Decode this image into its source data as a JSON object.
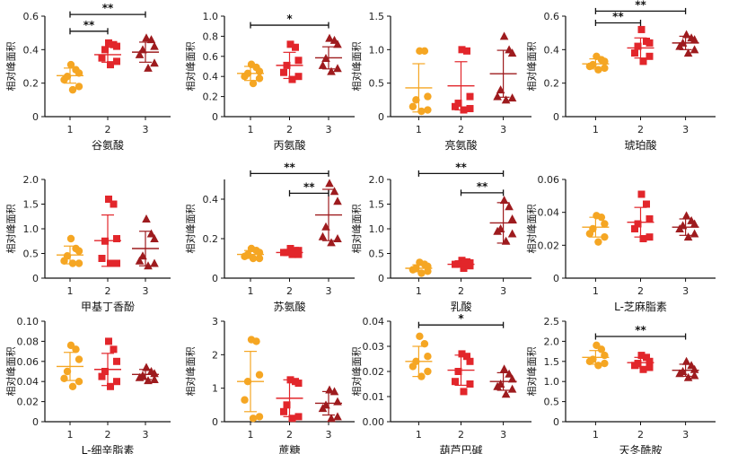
{
  "colors": {
    "group1": "#F5A623",
    "group2": "#E2262B",
    "group3": "#9E1B1E"
  },
  "markers": [
    "circle",
    "square",
    "triangle"
  ],
  "chart_data": [
    {
      "type": "scatter",
      "xlabel": "谷氨酸",
      "ylabel": "相对峰面积",
      "categories": [
        "1",
        "2",
        "3"
      ],
      "ylim": [
        0,
        0.6
      ],
      "yticks": [
        0,
        0.2,
        0.4,
        0.6
      ],
      "yticklabels": [
        "0",
        "0.2",
        "0.4",
        "0.6"
      ],
      "series": [
        {
          "values": [
            0.31,
            0.28,
            0.26,
            0.24,
            0.22,
            0.18,
            0.16
          ]
        },
        {
          "values": [
            0.44,
            0.43,
            0.42,
            0.4,
            0.35,
            0.33,
            0.31
          ]
        },
        {
          "values": [
            0.47,
            0.46,
            0.42,
            0.4,
            0.37,
            0.32,
            0.29
          ]
        }
      ],
      "mean": [
        0.245,
        0.37,
        0.385
      ],
      "sd": [
        0.045,
        0.045,
        0.06
      ],
      "significance": [
        {
          "from": "1",
          "to": "2",
          "label": "**",
          "y": 0.51
        },
        {
          "from": "1",
          "to": "3",
          "label": "**",
          "y": 0.61
        }
      ]
    },
    {
      "type": "scatter",
      "xlabel": "丙氨酸",
      "ylabel": "相对峰面积",
      "categories": [
        "1",
        "2",
        "3"
      ],
      "ylim": [
        0,
        1.0
      ],
      "yticks": [
        0,
        0.2,
        0.4,
        0.6,
        0.8,
        1.0
      ],
      "yticklabels": [
        "0",
        "0.2",
        "0.4",
        "0.6",
        "0.8",
        "1.0"
      ],
      "series": [
        {
          "values": [
            0.52,
            0.49,
            0.45,
            0.43,
            0.4,
            0.38,
            0.33
          ]
        },
        {
          "values": [
            0.72,
            0.69,
            0.56,
            0.51,
            0.44,
            0.4,
            0.37
          ]
        },
        {
          "values": [
            0.78,
            0.76,
            0.72,
            0.58,
            0.51,
            0.48,
            0.45
          ]
        }
      ],
      "mean": [
        0.43,
        0.51,
        0.585
      ],
      "sd": [
        0.07,
        0.13,
        0.11
      ],
      "significance": [
        {
          "from": "1",
          "to": "3",
          "label": "*",
          "y": 0.91
        }
      ]
    },
    {
      "type": "scatter",
      "xlabel": "亮氨酸",
      "ylabel": "相对峰面积",
      "categories": [
        "1",
        "2",
        "3"
      ],
      "ylim": [
        0,
        1.5
      ],
      "yticks": [
        0,
        0.5,
        1.0,
        1.5
      ],
      "yticklabels": [
        "0",
        "0.5",
        "1.0",
        "1.5"
      ],
      "series": [
        {
          "values": [
            0.98,
            0.98,
            0.3,
            0.25,
            0.15,
            0.1,
            0.08
          ]
        },
        {
          "values": [
            1.0,
            0.98,
            0.3,
            0.2,
            0.15,
            0.12,
            0.1
          ]
        },
        {
          "values": [
            1.2,
            1.0,
            0.95,
            0.4,
            0.3,
            0.28,
            0.25
          ]
        }
      ],
      "mean": [
        0.43,
        0.46,
        0.64
      ],
      "sd": [
        0.36,
        0.36,
        0.35
      ],
      "significance": []
    },
    {
      "type": "scatter",
      "xlabel": "琥珀酸",
      "ylabel": "相对峰面积",
      "categories": [
        "1",
        "2",
        "3"
      ],
      "ylim": [
        0,
        0.6
      ],
      "yticks": [
        0,
        0.2,
        0.4,
        0.6
      ],
      "yticklabels": [
        "0",
        "0.2",
        "0.4",
        "0.6"
      ],
      "series": [
        {
          "values": [
            0.36,
            0.34,
            0.33,
            0.31,
            0.3,
            0.29,
            0.28
          ]
        },
        {
          "values": [
            0.52,
            0.45,
            0.44,
            0.42,
            0.38,
            0.36,
            0.33
          ]
        },
        {
          "values": [
            0.49,
            0.47,
            0.46,
            0.44,
            0.42,
            0.4,
            0.38
          ]
        }
      ],
      "mean": [
        0.315,
        0.41,
        0.44
      ],
      "sd": [
        0.03,
        0.06,
        0.04
      ],
      "significance": [
        {
          "from": "1",
          "to": "2",
          "label": "**",
          "y": 0.56
        },
        {
          "from": "1",
          "to": "3",
          "label": "**",
          "y": 0.63
        }
      ]
    },
    {
      "type": "scatter",
      "xlabel": "甲基丁香酚",
      "ylabel": "相对峰面积",
      "categories": [
        "1",
        "2",
        "3"
      ],
      "ylim": [
        0,
        2.0
      ],
      "yticks": [
        0,
        0.5,
        1.0,
        1.5,
        2.0
      ],
      "yticklabels": [
        "0",
        "0.5",
        "1.0",
        "1.5",
        "2.0"
      ],
      "series": [
        {
          "values": [
            0.8,
            0.6,
            0.55,
            0.45,
            0.35,
            0.3,
            0.3
          ]
        },
        {
          "values": [
            1.6,
            1.5,
            0.8,
            0.75,
            0.4,
            0.3,
            0.3
          ]
        },
        {
          "values": [
            1.2,
            0.9,
            0.8,
            0.45,
            0.35,
            0.3,
            0.25
          ]
        }
      ],
      "mean": [
        0.47,
        0.76,
        0.6
      ],
      "sd": [
        0.18,
        0.52,
        0.35
      ],
      "significance": []
    },
    {
      "type": "scatter",
      "xlabel": "苏氨酸",
      "ylabel": "相对峰面积",
      "categories": [
        "1",
        "2",
        "3"
      ],
      "ylim": [
        0,
        0.5
      ],
      "yticks": [
        0,
        0.2,
        0.4
      ],
      "yticklabels": [
        "0",
        "0.2",
        "0.4"
      ],
      "series": [
        {
          "values": [
            0.15,
            0.14,
            0.13,
            0.12,
            0.11,
            0.1,
            0.1
          ]
        },
        {
          "values": [
            0.15,
            0.14,
            0.14,
            0.13,
            0.13,
            0.12,
            0.12
          ]
        },
        {
          "values": [
            0.48,
            0.44,
            0.39,
            0.26,
            0.21,
            0.2,
            0.18
          ]
        }
      ],
      "mean": [
        0.12,
        0.13,
        0.32
      ],
      "sd": [
        0.02,
        0.01,
        0.13
      ],
      "significance": [
        {
          "from": "2",
          "to": "3",
          "label": "**",
          "y": 0.43
        },
        {
          "from": "1",
          "to": "3",
          "label": "**",
          "y": 0.53
        }
      ]
    },
    {
      "type": "scatter",
      "xlabel": "乳酸",
      "ylabel": "相对峰面积",
      "categories": [
        "1",
        "2",
        "3"
      ],
      "ylim": [
        0,
        2.0
      ],
      "yticks": [
        0,
        0.5,
        1.0,
        1.5,
        2.0
      ],
      "yticklabels": [
        "0",
        "0.5",
        "1.0",
        "1.5",
        "2.0"
      ],
      "series": [
        {
          "values": [
            0.32,
            0.28,
            0.24,
            0.2,
            0.17,
            0.14,
            0.1
          ]
        },
        {
          "values": [
            0.36,
            0.33,
            0.31,
            0.29,
            0.28,
            0.25,
            0.2
          ]
        },
        {
          "values": [
            1.58,
            1.45,
            1.2,
            1.0,
            0.95,
            0.9,
            0.75
          ]
        }
      ],
      "mean": [
        0.2,
        0.28,
        1.12
      ],
      "sd": [
        0.07,
        0.06,
        0.41
      ],
      "significance": [
        {
          "from": "2",
          "to": "3",
          "label": "**",
          "y": 1.73
        },
        {
          "from": "1",
          "to": "3",
          "label": "**",
          "y": 2.12
        }
      ]
    },
    {
      "type": "scatter",
      "xlabel": "L-芝麻脂素",
      "ylabel": "相对峰面积",
      "categories": [
        "1",
        "2",
        "3"
      ],
      "ylim": [
        0,
        0.06
      ],
      "yticks": [
        0,
        0.02,
        0.04,
        0.06
      ],
      "yticklabels": [
        "0",
        "0.02",
        "0.04",
        "0.06"
      ],
      "series": [
        {
          "values": [
            0.038,
            0.037,
            0.033,
            0.03,
            0.027,
            0.025,
            0.022
          ]
        },
        {
          "values": [
            0.051,
            0.045,
            0.036,
            0.033,
            0.03,
            0.025,
            0.024
          ]
        },
        {
          "values": [
            0.038,
            0.035,
            0.033,
            0.032,
            0.03,
            0.027,
            0.025
          ]
        }
      ],
      "mean": [
        0.031,
        0.034,
        0.031
      ],
      "sd": [
        0.006,
        0.009,
        0.005
      ],
      "significance": []
    },
    {
      "type": "scatter",
      "xlabel": "L-细辛脂素",
      "ylabel": "相对峰面积",
      "categories": [
        "1",
        "2",
        "3"
      ],
      "ylim": [
        0,
        0.1
      ],
      "yticks": [
        0,
        0.02,
        0.04,
        0.06,
        0.08,
        0.1
      ],
      "yticklabels": [
        "0",
        "0.02",
        "0.04",
        "0.06",
        "0.08",
        "0.10"
      ],
      "series": [
        {
          "values": [
            0.076,
            0.072,
            0.062,
            0.05,
            0.043,
            0.04,
            0.035
          ]
        },
        {
          "values": [
            0.08,
            0.072,
            0.06,
            0.05,
            0.045,
            0.04,
            0.035
          ]
        },
        {
          "values": [
            0.054,
            0.05,
            0.048,
            0.046,
            0.044,
            0.042,
            0.041
          ]
        }
      ],
      "mean": [
        0.055,
        0.052,
        0.047
      ],
      "sd": [
        0.014,
        0.016,
        0.005
      ],
      "significance": []
    },
    {
      "type": "scatter",
      "xlabel": "蔗糖",
      "ylabel": "相对峰面积",
      "categories": [
        "1",
        "2",
        "3"
      ],
      "ylim": [
        0,
        3
      ],
      "yticks": [
        0,
        1,
        2,
        3
      ],
      "yticklabels": [
        "0",
        "1",
        "2",
        "3"
      ],
      "series": [
        {
          "values": [
            2.45,
            2.4,
            1.4,
            1.2,
            0.65,
            0.15,
            0.1
          ]
        },
        {
          "values": [
            1.25,
            1.2,
            1.15,
            0.5,
            0.3,
            0.15,
            0.1
          ]
        },
        {
          "values": [
            0.95,
            0.9,
            0.6,
            0.5,
            0.4,
            0.15,
            0.1
          ]
        }
      ],
      "mean": [
        1.2,
        0.7,
        0.55
      ],
      "sd": [
        0.9,
        0.55,
        0.35
      ],
      "significance": []
    },
    {
      "type": "scatter",
      "xlabel": "葫芦巴碱",
      "ylabel": "相对峰面积",
      "categories": [
        "1",
        "2",
        "3"
      ],
      "ylim": [
        0,
        0.04
      ],
      "yticks": [
        0,
        0.01,
        0.02,
        0.03,
        0.04
      ],
      "yticklabels": [
        "0.00",
        "0.01",
        "0.02",
        "0.03",
        "0.04"
      ],
      "series": [
        {
          "values": [
            0.034,
            0.031,
            0.026,
            0.024,
            0.022,
            0.02,
            0.018
          ]
        },
        {
          "values": [
            0.027,
            0.026,
            0.024,
            0.02,
            0.016,
            0.015,
            0.012
          ]
        },
        {
          "values": [
            0.021,
            0.019,
            0.017,
            0.015,
            0.014,
            0.013,
            0.011
          ]
        }
      ],
      "mean": [
        0.024,
        0.0205,
        0.016
      ],
      "sd": [
        0.006,
        0.006,
        0.0035
      ],
      "significance": [
        {
          "from": "1",
          "to": "3",
          "label": "*",
          "y": 0.0385
        }
      ]
    },
    {
      "type": "scatter",
      "xlabel": "天冬酰胺",
      "ylabel": "相对峰面积",
      "categories": [
        "1",
        "2",
        "3"
      ],
      "ylim": [
        0,
        2.5
      ],
      "yticks": [
        0,
        0.5,
        1.0,
        1.5,
        2.0,
        2.5
      ],
      "yticklabels": [
        "0",
        "0.5",
        "1.0",
        "1.5",
        "2.0",
        "2.5"
      ],
      "series": [
        {
          "values": [
            1.9,
            1.8,
            1.65,
            1.55,
            1.5,
            1.45,
            1.4
          ]
        },
        {
          "values": [
            1.65,
            1.6,
            1.5,
            1.45,
            1.4,
            1.35,
            1.3
          ]
        },
        {
          "values": [
            1.5,
            1.4,
            1.3,
            1.25,
            1.2,
            1.15,
            1.1
          ]
        }
      ],
      "mean": [
        1.6,
        1.47,
        1.28
      ],
      "sd": [
        0.17,
        0.13,
        0.15
      ],
      "significance": [
        {
          "from": "1",
          "to": "3",
          "label": "**",
          "y": 2.12
        }
      ]
    }
  ]
}
